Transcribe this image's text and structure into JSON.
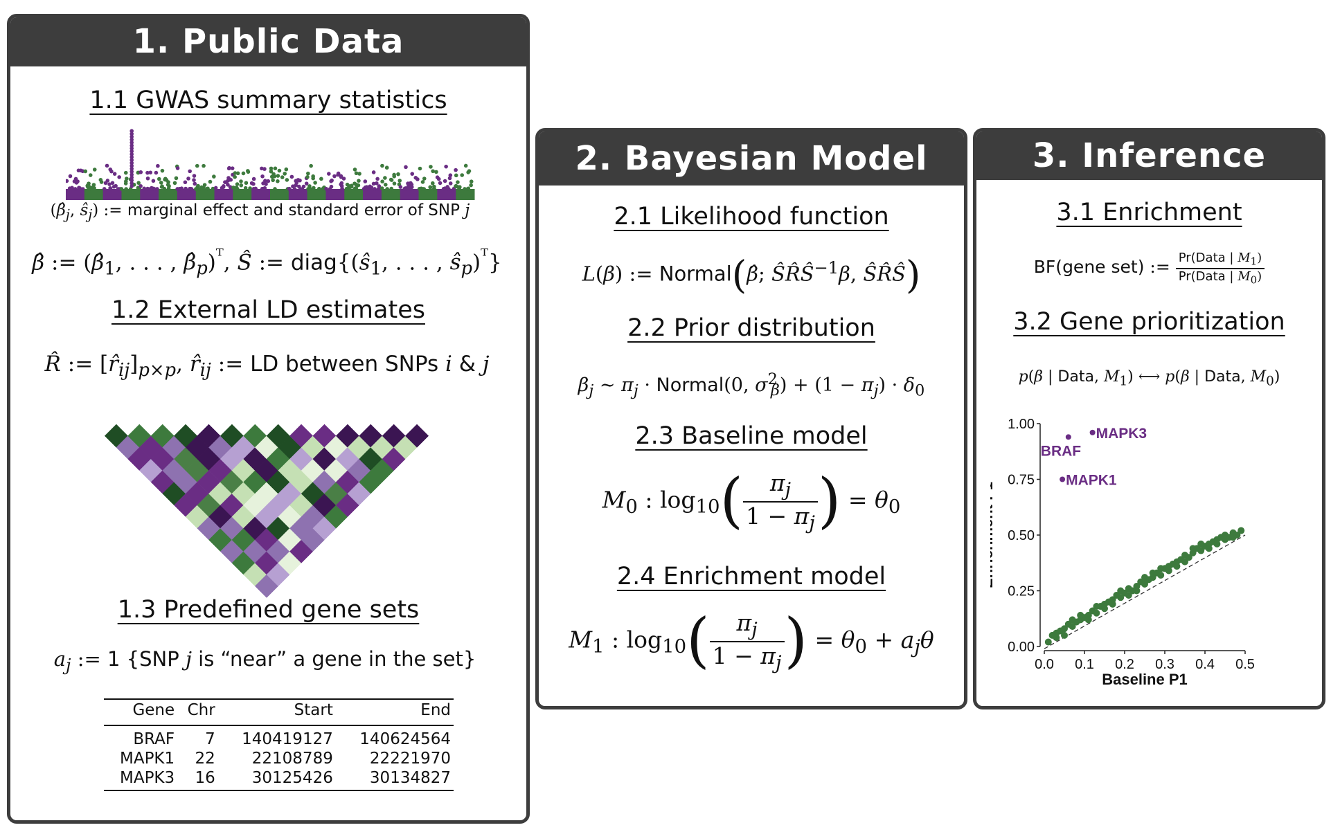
{
  "panel1": {
    "title": "1. Public Data",
    "sec1": "1.1 GWAS summary statistics",
    "marginal_eq": "(β̂ⱼ, ŝⱼ) := marginal effect and standard error of SNP j",
    "beta_eq": "β̂ := (β̂₁, . . . , β̂ₚ)ᵀ, Ŝ := diag{(ŝ₁, . . . , ŝₚ)ᵀ}",
    "sec2": "1.2 External LD estimates",
    "ld_eq": "R̂ := [r̂ᵢⱼ]ₚₓₚ, r̂ᵢⱼ := LD between SNPs i & j",
    "sec3": "1.3 Predefined gene sets",
    "annot_eq": "aⱼ := 1 {SNP j is “near” a gene in the set}",
    "table": {
      "headers": [
        "Gene",
        "Chr",
        "Start",
        "End"
      ],
      "rows": [
        [
          "BRAF",
          "7",
          "140419127",
          "140624564"
        ],
        [
          "MAPK1",
          "22",
          "22108789",
          "22221970"
        ],
        [
          "MAPK3",
          "16",
          "30125426",
          "30134827"
        ]
      ]
    }
  },
  "panel2": {
    "title": "2. Bayesian Model",
    "sec1": "2.1 Likelihood function",
    "lik_eq": "L(β) := Normal(β̂; ŜR̂Ŝ⁻¹β, ŜR̂Ŝ)",
    "sec2": "2.2 Prior distribution",
    "prior_eq": "βⱼ ∼ πⱼ · Normal(0, σ²β) + (1 − πⱼ) · δ₀",
    "sec3": "2.3 Baseline model",
    "m0_eq": "M₀ : log₁₀(πⱼ / (1 − πⱼ)) = θ₀",
    "sec4": "2.4 Enrichment model",
    "m1_eq": "M₁ : log₁₀(πⱼ / (1 − πⱼ)) = θ₀ + aⱼθ"
  },
  "panel3": {
    "title": "3. Inference",
    "sec1": "3.1 Enrichment",
    "bf_eq": "BF(gene set) := Pr(Data | M₁) / Pr(Data | M₀)",
    "sec2": "3.2 Gene prioritization",
    "prio_eq": "p(β | Data, M₁) ⟷ p(β | Data, M₀)"
  },
  "colors": {
    "panel_dark": "#3d3d3d",
    "purple": "#6a2d84",
    "green": "#3d7a3d",
    "dark_green": "#1f4d24",
    "light_purple": "#b6a0d2",
    "light_green": "#c5e0b4"
  },
  "chart_data": {
    "type": "scatter",
    "title": "",
    "xlabel": "Baseline P1",
    "ylabel": "Enrichment P1",
    "xlim": [
      0,
      0.5
    ],
    "ylim": [
      0,
      1
    ],
    "xticks": [
      "0.0",
      "0.1",
      "0.2",
      "0.3",
      "0.4",
      "0.5"
    ],
    "yticks": [
      "0.00",
      "0.25",
      "0.50",
      "0.75",
      "1.00"
    ],
    "reference_line": "y = x (dashed)",
    "labeled_points": [
      {
        "label": "BRAF",
        "x": 0.06,
        "y": 0.94
      },
      {
        "label": "MAPK3",
        "x": 0.12,
        "y": 0.96
      },
      {
        "label": "MAPK1",
        "x": 0.045,
        "y": 0.75
      }
    ],
    "background_points": [
      [
        0.01,
        0.02
      ],
      [
        0.02,
        0.05
      ],
      [
        0.03,
        0.06
      ],
      [
        0.04,
        0.07
      ],
      [
        0.05,
        0.08
      ],
      [
        0.06,
        0.1
      ],
      [
        0.07,
        0.09
      ],
      [
        0.08,
        0.11
      ],
      [
        0.09,
        0.12
      ],
      [
        0.1,
        0.13
      ],
      [
        0.11,
        0.14
      ],
      [
        0.12,
        0.16
      ],
      [
        0.13,
        0.15
      ],
      [
        0.14,
        0.18
      ],
      [
        0.15,
        0.19
      ],
      [
        0.16,
        0.2
      ],
      [
        0.17,
        0.21
      ],
      [
        0.18,
        0.23
      ],
      [
        0.19,
        0.22
      ],
      [
        0.2,
        0.24
      ],
      [
        0.21,
        0.26
      ],
      [
        0.22,
        0.25
      ],
      [
        0.23,
        0.27
      ],
      [
        0.24,
        0.29
      ],
      [
        0.25,
        0.28
      ],
      [
        0.26,
        0.3
      ],
      [
        0.27,
        0.31
      ],
      [
        0.28,
        0.33
      ],
      [
        0.29,
        0.32
      ],
      [
        0.3,
        0.35
      ],
      [
        0.31,
        0.36
      ],
      [
        0.32,
        0.37
      ],
      [
        0.33,
        0.38
      ],
      [
        0.34,
        0.39
      ],
      [
        0.35,
        0.41
      ],
      [
        0.36,
        0.4
      ],
      [
        0.37,
        0.42
      ],
      [
        0.38,
        0.44
      ],
      [
        0.39,
        0.43
      ],
      [
        0.4,
        0.45
      ],
      [
        0.41,
        0.46
      ],
      [
        0.42,
        0.47
      ],
      [
        0.43,
        0.48
      ],
      [
        0.44,
        0.49
      ],
      [
        0.45,
        0.5
      ],
      [
        0.46,
        0.49
      ],
      [
        0.47,
        0.51
      ],
      [
        0.48,
        0.5
      ],
      [
        0.49,
        0.52
      ],
      [
        0.03,
        0.04
      ],
      [
        0.07,
        0.12
      ],
      [
        0.11,
        0.12
      ],
      [
        0.15,
        0.17
      ],
      [
        0.19,
        0.25
      ],
      [
        0.23,
        0.25
      ],
      [
        0.27,
        0.33
      ],
      [
        0.31,
        0.34
      ],
      [
        0.35,
        0.38
      ],
      [
        0.39,
        0.46
      ],
      [
        0.43,
        0.46
      ],
      [
        0.47,
        0.49
      ],
      [
        0.05,
        0.05
      ],
      [
        0.09,
        0.14
      ],
      [
        0.13,
        0.18
      ],
      [
        0.17,
        0.19
      ],
      [
        0.21,
        0.23
      ],
      [
        0.25,
        0.31
      ],
      [
        0.29,
        0.35
      ],
      [
        0.33,
        0.36
      ],
      [
        0.37,
        0.44
      ],
      [
        0.41,
        0.44
      ],
      [
        0.45,
        0.48
      ]
    ]
  }
}
